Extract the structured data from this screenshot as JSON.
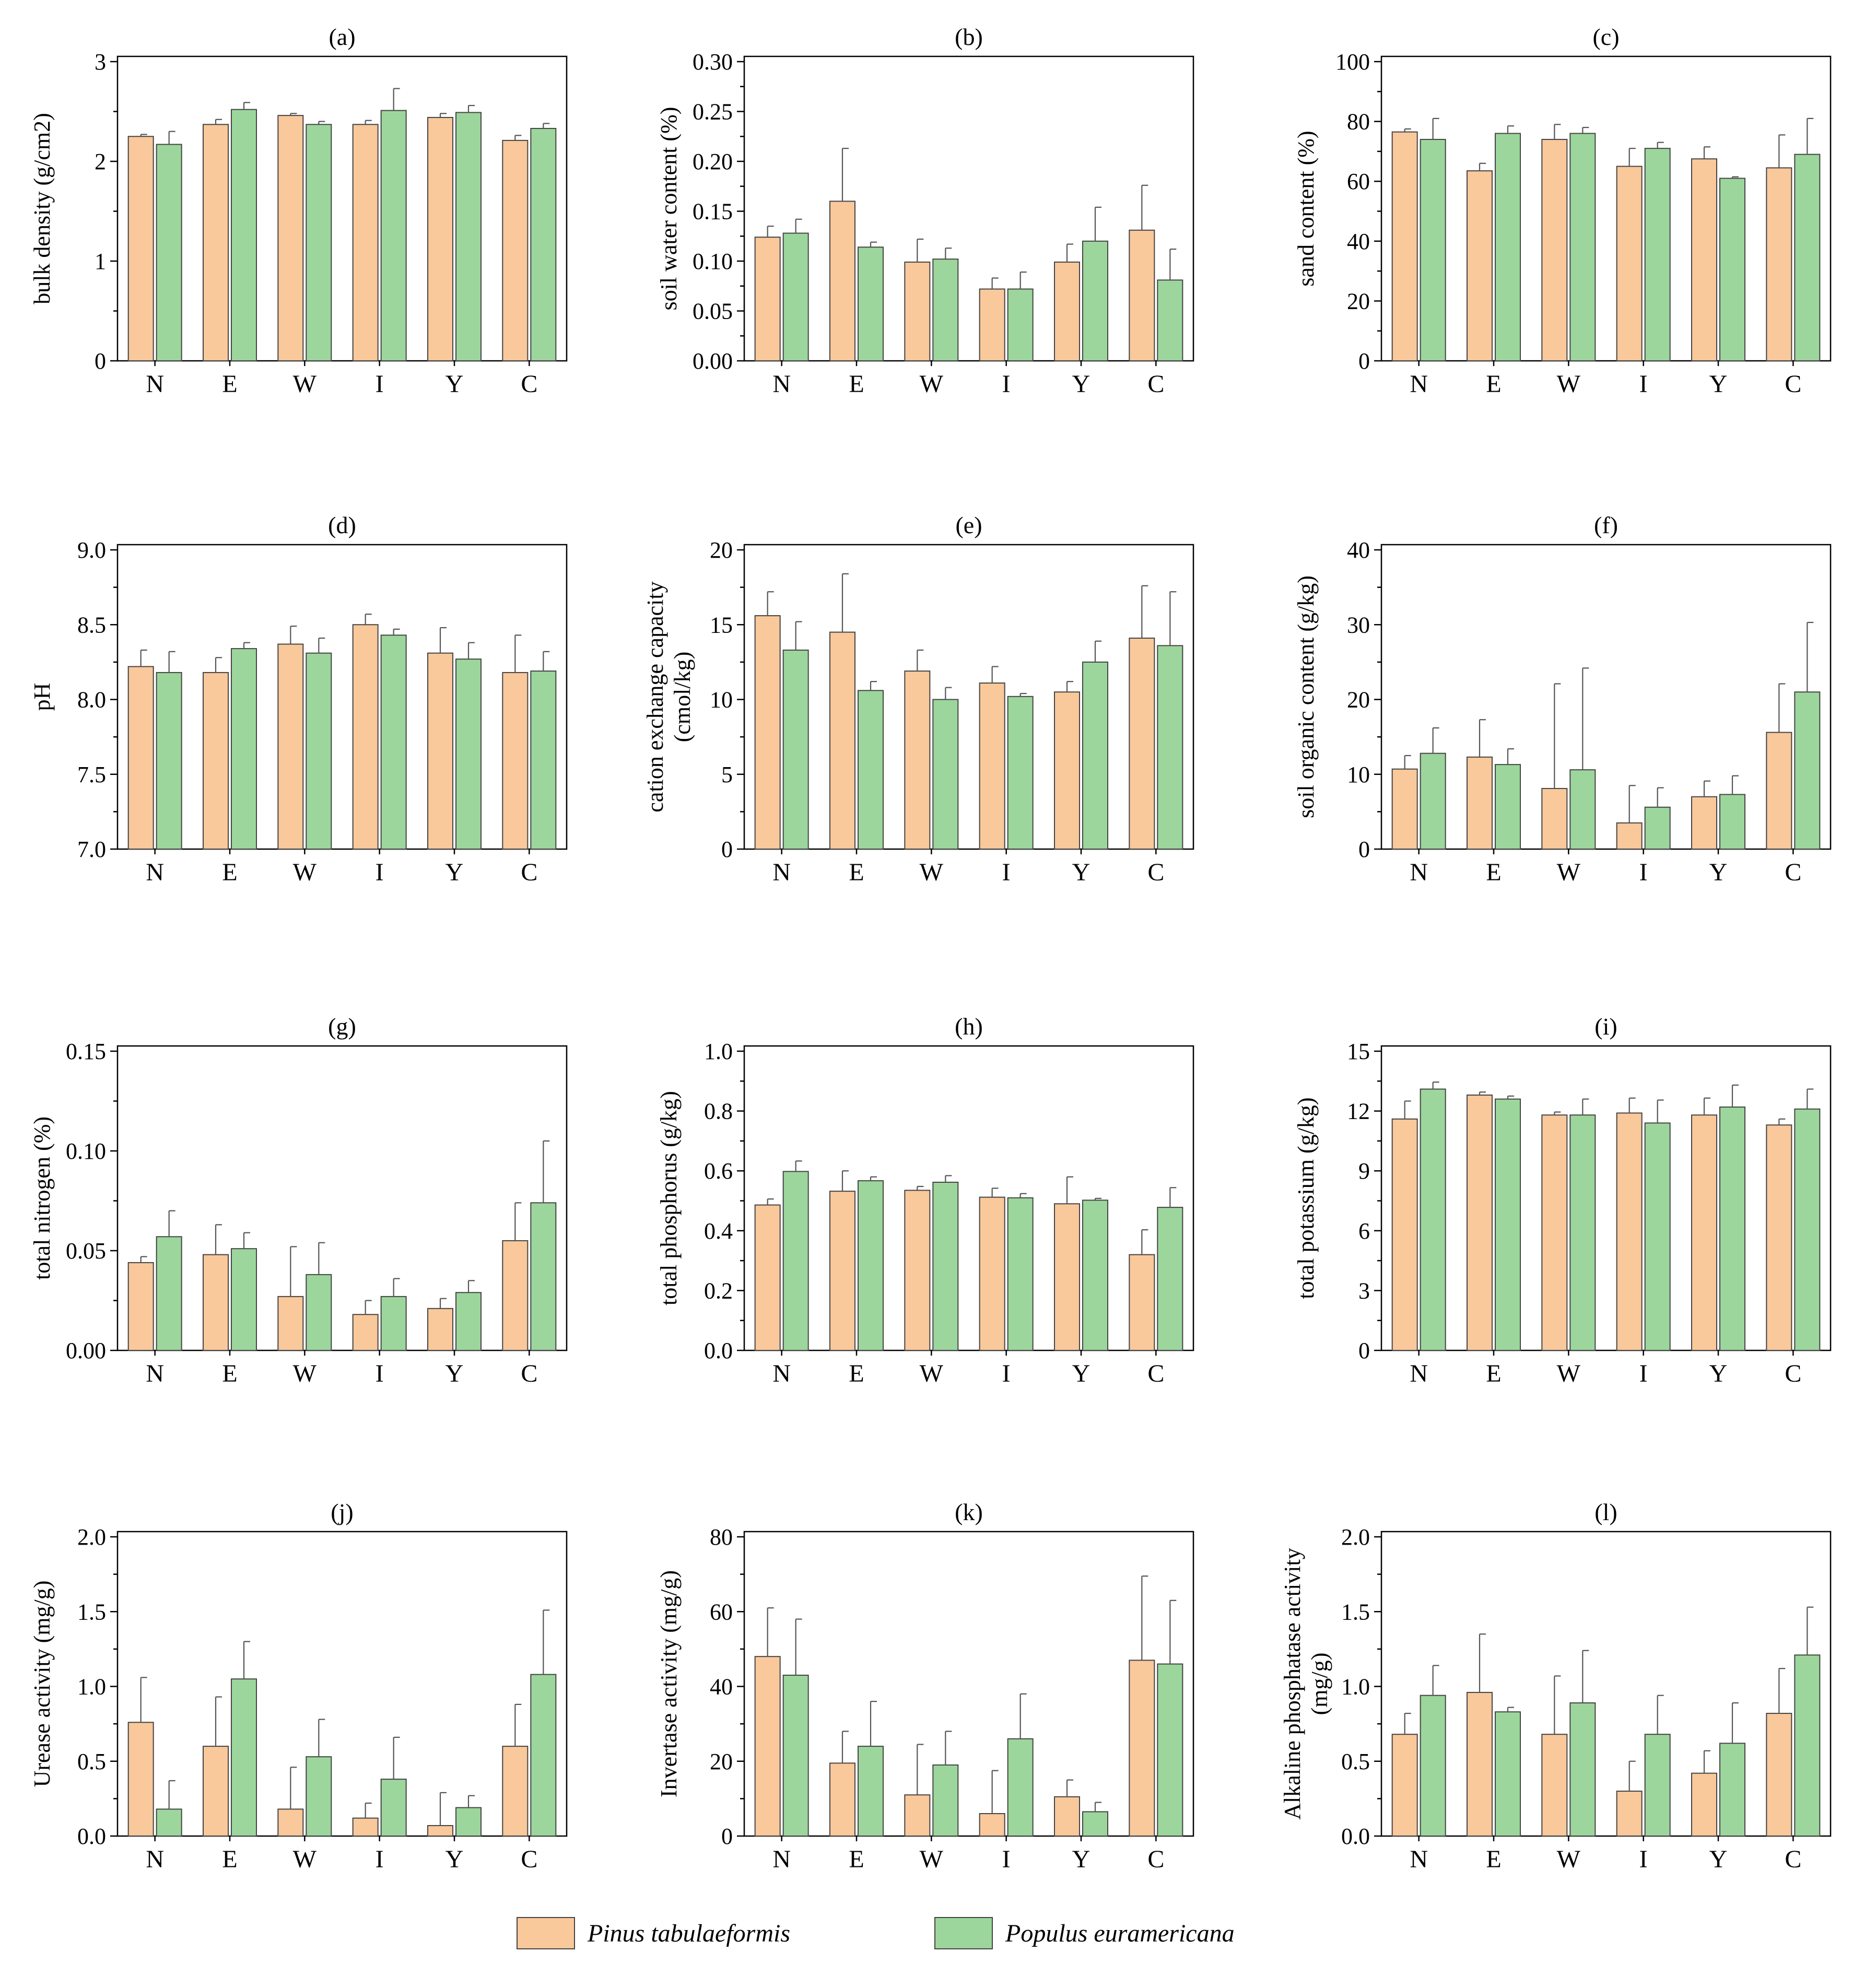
{
  "chart_data": {
    "type": "bar",
    "series_meta": [
      {
        "name": "Pinus tabulaeformis",
        "color": "#F9C89B"
      },
      {
        "name": "Populus euramericana",
        "color": "#9CD69C"
      }
    ],
    "panels": [
      {
        "title": "(a)",
        "ylabel": [
          "bulk density (g/cm2)"
        ],
        "ylim": [
          0,
          3
        ],
        "ticks": [
          "0",
          "1",
          "2",
          "3"
        ],
        "categories": [
          "N",
          "E",
          "W",
          "I",
          "Y",
          "C"
        ],
        "series": [
          {
            "name": "Pinus tabulaeformis",
            "values": [
              2.25,
              2.37,
              2.46,
              2.37,
              2.44,
              2.21
            ],
            "errors": [
              0.02,
              0.05,
              0.02,
              0.04,
              0.04,
              0.05
            ]
          },
          {
            "name": "Populus euramericana",
            "values": [
              2.17,
              2.52,
              2.37,
              2.51,
              2.49,
              2.33
            ],
            "errors": [
              0.13,
              0.07,
              0.03,
              0.22,
              0.07,
              0.05
            ]
          }
        ]
      },
      {
        "title": "(b)",
        "ylabel": [
          "soil water content (%)"
        ],
        "ylim": [
          0,
          0.3
        ],
        "ticks": [
          "0.00",
          "0.05",
          "0.10",
          "0.15",
          "0.20",
          "0.25",
          "0.30"
        ],
        "categories": [
          "N",
          "E",
          "W",
          "I",
          "Y",
          "C"
        ],
        "series": [
          {
            "name": "Pinus tabulaeformis",
            "values": [
              0.124,
              0.16,
              0.099,
              0.072,
              0.099,
              0.131
            ],
            "errors": [
              0.011,
              0.053,
              0.023,
              0.011,
              0.018,
              0.045
            ]
          },
          {
            "name": "Populus euramericana",
            "values": [
              0.128,
              0.114,
              0.102,
              0.072,
              0.12,
              0.081
            ],
            "errors": [
              0.014,
              0.005,
              0.011,
              0.017,
              0.034,
              0.031
            ]
          }
        ]
      },
      {
        "title": "(c)",
        "ylabel": [
          "sand content (%)"
        ],
        "ylim": [
          0,
          100
        ],
        "ticks": [
          "0",
          "20",
          "40",
          "60",
          "80",
          "100"
        ],
        "categories": [
          "N",
          "E",
          "W",
          "I",
          "Y",
          "C"
        ],
        "series": [
          {
            "name": "Pinus tabulaeformis",
            "values": [
              76.5,
              63.5,
              74,
              65,
              67.5,
              64.5
            ],
            "errors": [
              1,
              2.5,
              5,
              6,
              4,
              11
            ]
          },
          {
            "name": "Populus euramericana",
            "values": [
              74,
              76,
              76,
              71,
              61,
              69
            ],
            "errors": [
              7,
              2.5,
              2,
              2,
              0.5,
              12
            ]
          }
        ]
      },
      {
        "title": "(d)",
        "ylabel": [
          "pH"
        ],
        "ylim": [
          7,
          9
        ],
        "ticks": [
          "7.0",
          "7.5",
          "8.0",
          "8.5",
          "9.0"
        ],
        "categories": [
          "N",
          "E",
          "W",
          "I",
          "Y",
          "C"
        ],
        "series": [
          {
            "name": "Pinus tabulaeformis",
            "values": [
              8.22,
              8.18,
              8.37,
              8.5,
              8.31,
              8.18
            ],
            "errors": [
              0.11,
              0.1,
              0.12,
              0.07,
              0.17,
              0.25
            ]
          },
          {
            "name": "Populus euramericana",
            "values": [
              8.18,
              8.34,
              8.31,
              8.43,
              8.27,
              8.19
            ],
            "errors": [
              0.14,
              0.04,
              0.1,
              0.04,
              0.11,
              0.13
            ]
          }
        ]
      },
      {
        "title": "(e)",
        "ylabel": [
          "cation exchange capacity",
          "(cmol/kg)"
        ],
        "ylim": [
          0,
          20
        ],
        "ticks": [
          "0",
          "5",
          "10",
          "15",
          "20"
        ],
        "categories": [
          "N",
          "E",
          "W",
          "I",
          "Y",
          "C"
        ],
        "series": [
          {
            "name": "Pinus tabulaeformis",
            "values": [
              15.6,
              14.5,
              11.9,
              11.1,
              10.5,
              14.1
            ],
            "errors": [
              1.6,
              3.9,
              1.4,
              1.1,
              0.7,
              3.5
            ]
          },
          {
            "name": "Populus euramericana",
            "values": [
              13.3,
              10.6,
              10,
              10.2,
              12.5,
              13.6
            ],
            "errors": [
              1.9,
              0.6,
              0.8,
              0.2,
              1.4,
              3.6
            ]
          }
        ]
      },
      {
        "title": "(f)",
        "ylabel": [
          "soil organic content (g/kg)"
        ],
        "ylim": [
          0,
          40
        ],
        "ticks": [
          "0",
          "10",
          "20",
          "30",
          "40"
        ],
        "categories": [
          "N",
          "E",
          "W",
          "I",
          "Y",
          "C"
        ],
        "series": [
          {
            "name": "Pinus tabulaeformis",
            "values": [
              10.7,
              12.3,
              8.1,
              3.5,
              7,
              15.6
            ],
            "errors": [
              1.8,
              5,
              14,
              5,
              2.1,
              6.5
            ]
          },
          {
            "name": "Populus euramericana",
            "values": [
              12.8,
              11.3,
              10.6,
              5.6,
              7.3,
              21
            ],
            "errors": [
              3.4,
              2.1,
              13.6,
              2.6,
              2.5,
              9.3
            ]
          }
        ]
      },
      {
        "title": "(g)",
        "ylabel": [
          "total nitrogen (%)"
        ],
        "ylim": [
          0,
          0.15
        ],
        "ticks": [
          "0.00",
          "0.05",
          "0.10",
          "0.15"
        ],
        "categories": [
          "N",
          "E",
          "W",
          "I",
          "Y",
          "C"
        ],
        "series": [
          {
            "name": "Pinus tabulaeformis",
            "values": [
              0.044,
              0.048,
              0.027,
              0.018,
              0.021,
              0.055
            ],
            "errors": [
              0.003,
              0.015,
              0.025,
              0.007,
              0.005,
              0.019
            ]
          },
          {
            "name": "Populus euramericana",
            "values": [
              0.057,
              0.051,
              0.038,
              0.027,
              0.029,
              0.074
            ],
            "errors": [
              0.013,
              0.008,
              0.016,
              0.009,
              0.006,
              0.031
            ]
          }
        ]
      },
      {
        "title": "(h)",
        "ylabel": [
          "total phosphorus (g/kg)"
        ],
        "ylim": [
          0,
          1
        ],
        "ticks": [
          "0.0",
          "0.2",
          "0.4",
          "0.6",
          "0.8",
          "1.0"
        ],
        "categories": [
          "N",
          "E",
          "W",
          "I",
          "Y",
          "C"
        ],
        "series": [
          {
            "name": "Pinus tabulaeformis",
            "values": [
              0.486,
              0.532,
              0.535,
              0.512,
              0.49,
              0.32
            ],
            "errors": [
              0.02,
              0.068,
              0.013,
              0.03,
              0.09,
              0.083
            ]
          },
          {
            "name": "Populus euramericana",
            "values": [
              0.598,
              0.567,
              0.562,
              0.51,
              0.502,
              0.478
            ],
            "errors": [
              0.035,
              0.013,
              0.022,
              0.014,
              0.006,
              0.066
            ]
          }
        ]
      },
      {
        "title": "(i)",
        "ylabel": [
          "total potassium (g/kg)"
        ],
        "ylim": [
          0,
          15
        ],
        "ticks": [
          "0",
          "3",
          "6",
          "9",
          "12",
          "15"
        ],
        "categories": [
          "N",
          "E",
          "W",
          "I",
          "Y",
          "C"
        ],
        "series": [
          {
            "name": "Pinus tabulaeformis",
            "values": [
              11.6,
              12.8,
              11.8,
              11.9,
              11.8,
              11.3
            ],
            "errors": [
              0.9,
              0.15,
              0.15,
              0.75,
              0.85,
              0.3
            ]
          },
          {
            "name": "Populus euramericana",
            "values": [
              13.1,
              12.6,
              11.8,
              11.4,
              12.2,
              12.1
            ],
            "errors": [
              0.35,
              0.15,
              0.8,
              1.15,
              1.1,
              1.0
            ]
          }
        ]
      },
      {
        "title": "(j)",
        "ylabel": [
          "Urease activity (mg/g)"
        ],
        "ylim": [
          0,
          2
        ],
        "ticks": [
          "0.0",
          "0.5",
          "1.0",
          "1.5",
          "2.0"
        ],
        "categories": [
          "N",
          "E",
          "W",
          "I",
          "Y",
          "C"
        ],
        "series": [
          {
            "name": "Pinus tabulaeformis",
            "values": [
              0.76,
              0.6,
              0.18,
              0.12,
              0.07,
              0.6
            ],
            "errors": [
              0.3,
              0.33,
              0.28,
              0.1,
              0.22,
              0.28
            ]
          },
          {
            "name": "Populus euramericana",
            "values": [
              0.18,
              1.05,
              0.53,
              0.38,
              0.19,
              1.08
            ],
            "errors": [
              0.19,
              0.25,
              0.25,
              0.28,
              0.08,
              0.43
            ]
          }
        ]
      },
      {
        "title": "(k)",
        "ylabel": [
          "Invertase activity (mg/g)"
        ],
        "ylim": [
          0,
          80
        ],
        "ticks": [
          "0",
          "20",
          "40",
          "60",
          "80"
        ],
        "categories": [
          "N",
          "E",
          "W",
          "I",
          "Y",
          "C"
        ],
        "series": [
          {
            "name": "Pinus tabulaeformis",
            "values": [
              48,
              19.5,
              11,
              6,
              10.5,
              47
            ],
            "errors": [
              13,
              8.5,
              13.5,
              11.5,
              4.5,
              22.5
            ]
          },
          {
            "name": "Populus euramericana",
            "values": [
              43,
              24,
              19,
              26,
              6.5,
              46
            ],
            "errors": [
              15,
              12,
              9,
              12,
              2.5,
              17
            ]
          }
        ]
      },
      {
        "title": "(l)",
        "ylabel": [
          "Alkaline phosphatase activity",
          "(mg/g)"
        ],
        "ylim": [
          0,
          2
        ],
        "ticks": [
          "0.0",
          "0.5",
          "1.0",
          "1.5",
          "2.0"
        ],
        "categories": [
          "N",
          "E",
          "W",
          "I",
          "Y",
          "C"
        ],
        "series": [
          {
            "name": "Pinus tabulaeformis",
            "values": [
              0.68,
              0.96,
              0.68,
              0.3,
              0.42,
              0.82
            ],
            "errors": [
              0.14,
              0.39,
              0.39,
              0.2,
              0.15,
              0.3
            ]
          },
          {
            "name": "Populus euramericana",
            "values": [
              0.94,
              0.83,
              0.89,
              0.68,
              0.62,
              1.21
            ],
            "errors": [
              0.2,
              0.03,
              0.35,
              0.26,
              0.27,
              0.32
            ]
          }
        ]
      }
    ],
    "legend": [
      {
        "label": "Pinus tabulaeformis",
        "color": "#F9C89B"
      },
      {
        "label": "Populus euramericana",
        "color": "#9CD69C"
      }
    ]
  }
}
